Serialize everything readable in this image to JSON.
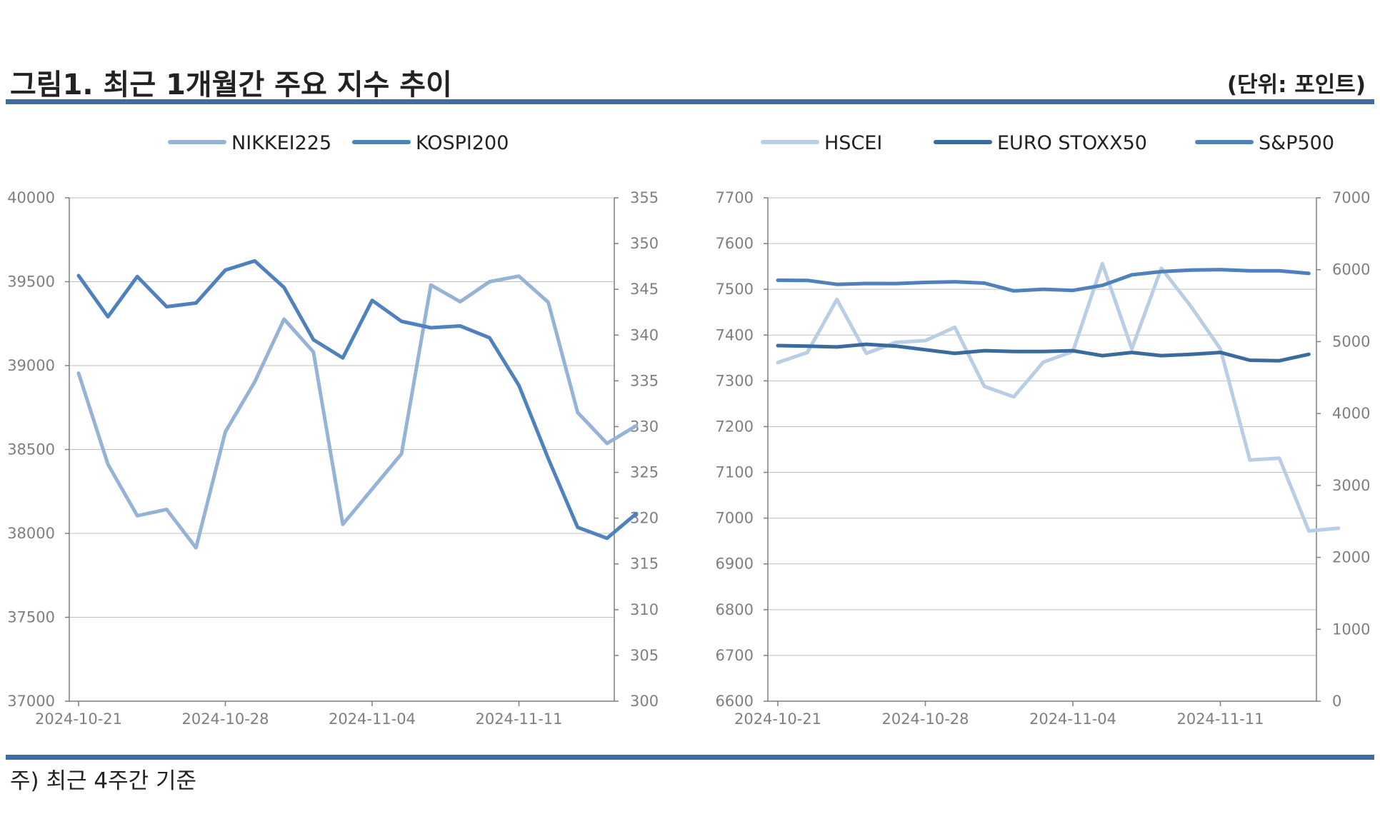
{
  "header": {
    "title": "그림1. 최근 1개월간 주요 지수 추이",
    "unit": "(단위: 포인트)"
  },
  "footer": {
    "note": "주) 최근 4주간 기준"
  },
  "chart_data": [
    {
      "type": "line",
      "x": [
        "2024-10-21",
        "2024-10-22",
        "2024-10-23",
        "2024-10-24",
        "2024-10-25",
        "2024-10-28",
        "2024-10-29",
        "2024-10-30",
        "2024-10-31",
        "2024-11-01",
        "2024-11-04",
        "2024-11-05",
        "2024-11-06",
        "2024-11-07",
        "2024-11-08",
        "2024-11-11",
        "2024-11-12",
        "2024-11-13",
        "2024-11-14",
        "2024-11-15",
        "2024-11-18"
      ],
      "xticks": [
        "2024-10-21",
        "2024-10-28",
        "2024-11-04",
        "2024-11-11"
      ],
      "ylim": [
        37000,
        40000
      ],
      "yticks": [
        37000,
        37500,
        38000,
        38500,
        39000,
        39500,
        40000
      ],
      "y2lim": [
        300,
        355
      ],
      "y2ticks": [
        300,
        305,
        310,
        315,
        320,
        325,
        330,
        335,
        340,
        345,
        350,
        355
      ],
      "grid": true,
      "legend": "top",
      "series": [
        {
          "name": "NIKKEI225",
          "axis": "left",
          "color": "#95b3d7",
          "x": [
            "2024-10-21",
            "2024-10-22",
            "2024-10-23",
            "2024-10-24",
            "2024-10-25",
            "2024-10-28",
            "2024-10-29",
            "2024-10-30",
            "2024-10-31",
            "2024-11-01",
            "2024-11-05",
            "2024-11-06",
            "2024-11-07",
            "2024-11-08",
            "2024-11-11",
            "2024-11-12",
            "2024-11-13",
            "2024-11-14",
            "2024-11-15",
            "2024-11-18"
          ],
          "values": [
            38955,
            38412,
            38105,
            38143,
            37914,
            38605,
            38903,
            39277,
            39081,
            38054,
            38474,
            39480,
            39381,
            39500,
            39533,
            39377,
            38721,
            38536,
            38642,
            null
          ]
        },
        {
          "name": "KOSPI200",
          "axis": "right",
          "color": "#4f81bd",
          "x": [
            "2024-10-21",
            "2024-10-22",
            "2024-10-23",
            "2024-10-24",
            "2024-10-25",
            "2024-10-28",
            "2024-10-29",
            "2024-10-30",
            "2024-10-31",
            "2024-11-01",
            "2024-11-04",
            "2024-11-05",
            "2024-11-06",
            "2024-11-07",
            "2024-11-08",
            "2024-11-11",
            "2024-11-12",
            "2024-11-13",
            "2024-11-14",
            "2024-11-15"
          ],
          "values": [
            346.5,
            342.0,
            346.4,
            343.1,
            343.5,
            347.1,
            348.1,
            345.2,
            339.5,
            337.5,
            343.8,
            341.5,
            340.8,
            341.0,
            339.7,
            334.5,
            326.5,
            319.0,
            317.8,
            320.5
          ]
        }
      ]
    },
    {
      "type": "line",
      "x": [
        "2024-10-21",
        "2024-10-22",
        "2024-10-23",
        "2024-10-24",
        "2024-10-25",
        "2024-10-28",
        "2024-10-29",
        "2024-10-30",
        "2024-10-31",
        "2024-11-01",
        "2024-11-04",
        "2024-11-05",
        "2024-11-06",
        "2024-11-07",
        "2024-11-08",
        "2024-11-11",
        "2024-11-12",
        "2024-11-13",
        "2024-11-14",
        "2024-11-15",
        "2024-11-18"
      ],
      "xticks": [
        "2024-10-21",
        "2024-10-28",
        "2024-11-04",
        "2024-11-11"
      ],
      "ylim": [
        6600,
        7700
      ],
      "yticks": [
        6600,
        6700,
        6800,
        6900,
        7000,
        7100,
        7200,
        7300,
        7400,
        7500,
        7600,
        7700
      ],
      "y2lim": [
        0,
        7000
      ],
      "y2ticks": [
        0,
        1000,
        2000,
        3000,
        4000,
        5000,
        6000,
        7000
      ],
      "grid": true,
      "legend": "top",
      "series": [
        {
          "name": "HSCEI",
          "axis": "left",
          "color": "#b9cde5",
          "x": [
            "2024-10-21",
            "2024-10-22",
            "2024-10-23",
            "2024-10-24",
            "2024-10-25",
            "2024-10-28",
            "2024-10-29",
            "2024-10-30",
            "2024-10-31",
            "2024-11-01",
            "2024-11-04",
            "2024-11-05",
            "2024-11-06",
            "2024-11-07",
            "2024-11-08",
            "2024-11-11",
            "2024-11-12",
            "2024-11-13",
            "2024-11-14",
            "2024-11-15",
            "2024-11-18"
          ],
          "values": [
            7340,
            7362,
            7478,
            7360,
            7384,
            7388,
            7417,
            7288,
            7265,
            7341,
            7364,
            7556,
            7370,
            7546,
            7463,
            7370,
            7127,
            7131,
            6972,
            6978,
            null
          ]
        },
        {
          "name": "EURO STOXX50",
          "axis": "left",
          "color": "#3a6b9f",
          "x": [
            "2024-10-21",
            "2024-10-22",
            "2024-10-23",
            "2024-10-24",
            "2024-10-25",
            "2024-10-28",
            "2024-10-29",
            "2024-10-30",
            "2024-10-31",
            "2024-11-01",
            "2024-11-04",
            "2024-11-05",
            "2024-11-06",
            "2024-11-07",
            "2024-11-08",
            "2024-11-11",
            "2024-11-12",
            "2024-11-13",
            "2024-11-14",
            "2024-11-15"
          ],
          "values": [
            7377,
            7376,
            7374,
            7380,
            7376,
            7368,
            7360,
            7366,
            7364,
            7364,
            7366,
            7355,
            7362,
            7355,
            7358,
            7362,
            7345,
            7344,
            7358,
            null
          ]
        },
        {
          "name": "S&P500",
          "axis": "right",
          "color": "#4f81bd",
          "x": [
            "2024-10-21",
            "2024-10-22",
            "2024-10-23",
            "2024-10-24",
            "2024-10-25",
            "2024-10-28",
            "2024-10-29",
            "2024-10-30",
            "2024-10-31",
            "2024-11-01",
            "2024-11-04",
            "2024-11-05",
            "2024-11-06",
            "2024-11-07",
            "2024-11-08",
            "2024-11-11",
            "2024-11-12",
            "2024-11-13",
            "2024-11-14",
            "2024-11-15"
          ],
          "values": [
            5853,
            5851,
            5797,
            5809,
            5808,
            5823,
            5832,
            5813,
            5705,
            5728,
            5712,
            5782,
            5929,
            5973,
            5995,
            6001,
            5984,
            5985,
            5949,
            null
          ]
        }
      ]
    }
  ]
}
